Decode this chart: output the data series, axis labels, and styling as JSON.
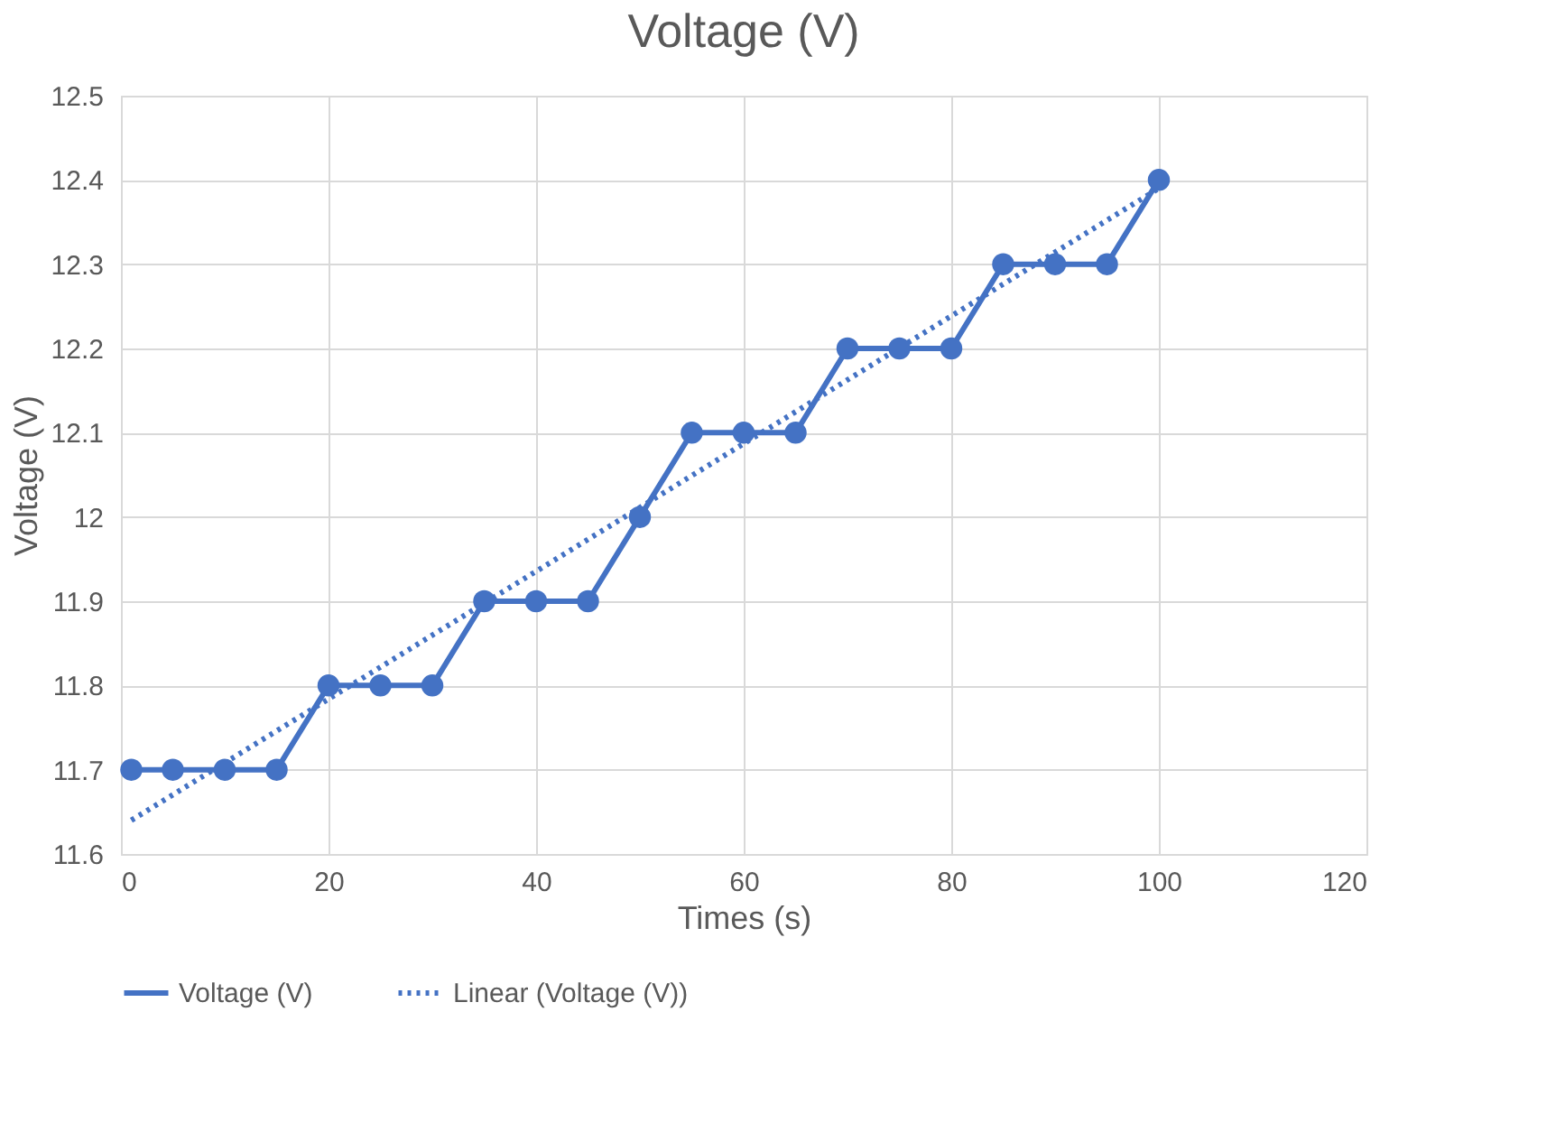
{
  "chart_data": {
    "type": "line",
    "title": "Voltage (V)",
    "xlabel": "Times (s)",
    "ylabel": "Voltage (V)",
    "xlim": [
      0,
      120
    ],
    "xticks": [
      0,
      20,
      40,
      60,
      80,
      100,
      120
    ],
    "ylim": [
      11.6,
      12.5
    ],
    "yticks": [
      11.6,
      11.7,
      11.8,
      11.9,
      12,
      12.1,
      12.2,
      12.3,
      12.4,
      12.5
    ],
    "grid": true,
    "legend": "bottom",
    "series": [
      {
        "name": "Voltage (V)",
        "color": "#4472c4",
        "marker": "circle",
        "line_style": "solid",
        "x": [
          1,
          5,
          10,
          15,
          20,
          25,
          30,
          35,
          40,
          45,
          50,
          55,
          60,
          65,
          70,
          75,
          80,
          85,
          90,
          95,
          100
        ],
        "values": [
          11.7,
          11.7,
          11.7,
          11.7,
          11.8,
          11.8,
          11.8,
          11.9,
          11.9,
          11.9,
          12.0,
          12.1,
          12.1,
          12.1,
          12.2,
          12.2,
          12.2,
          12.3,
          12.3,
          12.3,
          12.4
        ]
      },
      {
        "name": "Linear (Voltage (V))",
        "color": "#4472c4",
        "marker": "none",
        "line_style": "dotted",
        "x": [
          1,
          100
        ],
        "values": [
          11.64,
          12.39
        ]
      }
    ]
  }
}
